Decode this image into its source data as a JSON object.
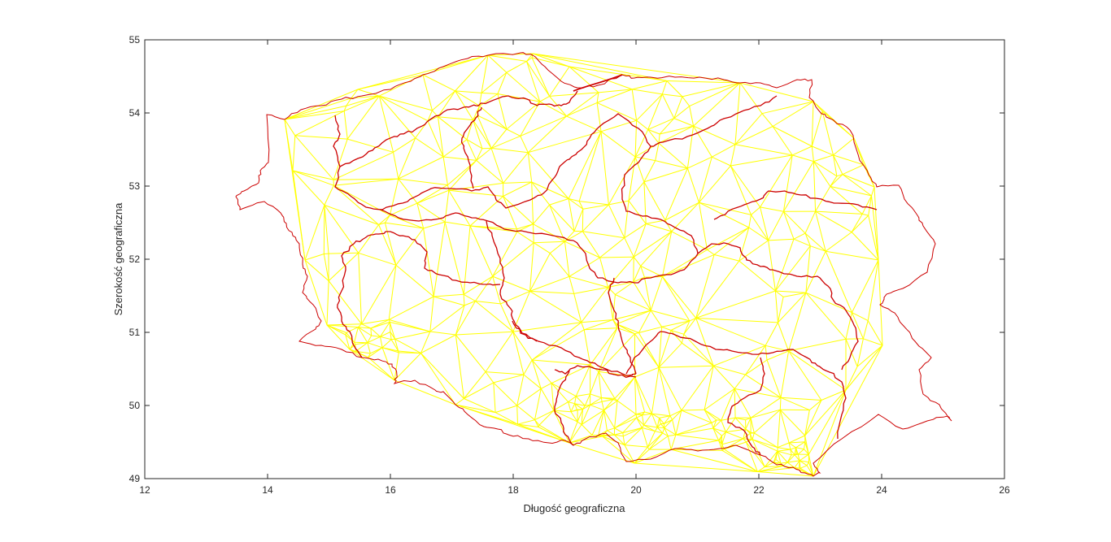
{
  "chart_data": {
    "type": "map",
    "xlabel": "Długość geograficzna",
    "ylabel": "Szerokość geograficzna",
    "xlim": [
      12,
      26
    ],
    "ylim": [
      49,
      55
    ],
    "xticks": [
      12,
      14,
      16,
      18,
      20,
      22,
      24,
      26
    ],
    "yticks": [
      49,
      50,
      51,
      52,
      53,
      54,
      55
    ],
    "grid": false,
    "colors": {
      "border": "#cc0000",
      "mesh": "#ffff00",
      "axes": "#262626",
      "background": "#ffffff"
    },
    "layers": [
      {
        "kind": "voivodeship-borders",
        "color": "#cc0000"
      },
      {
        "kind": "delaunay-triangulation",
        "color": "#ffff00"
      }
    ]
  }
}
